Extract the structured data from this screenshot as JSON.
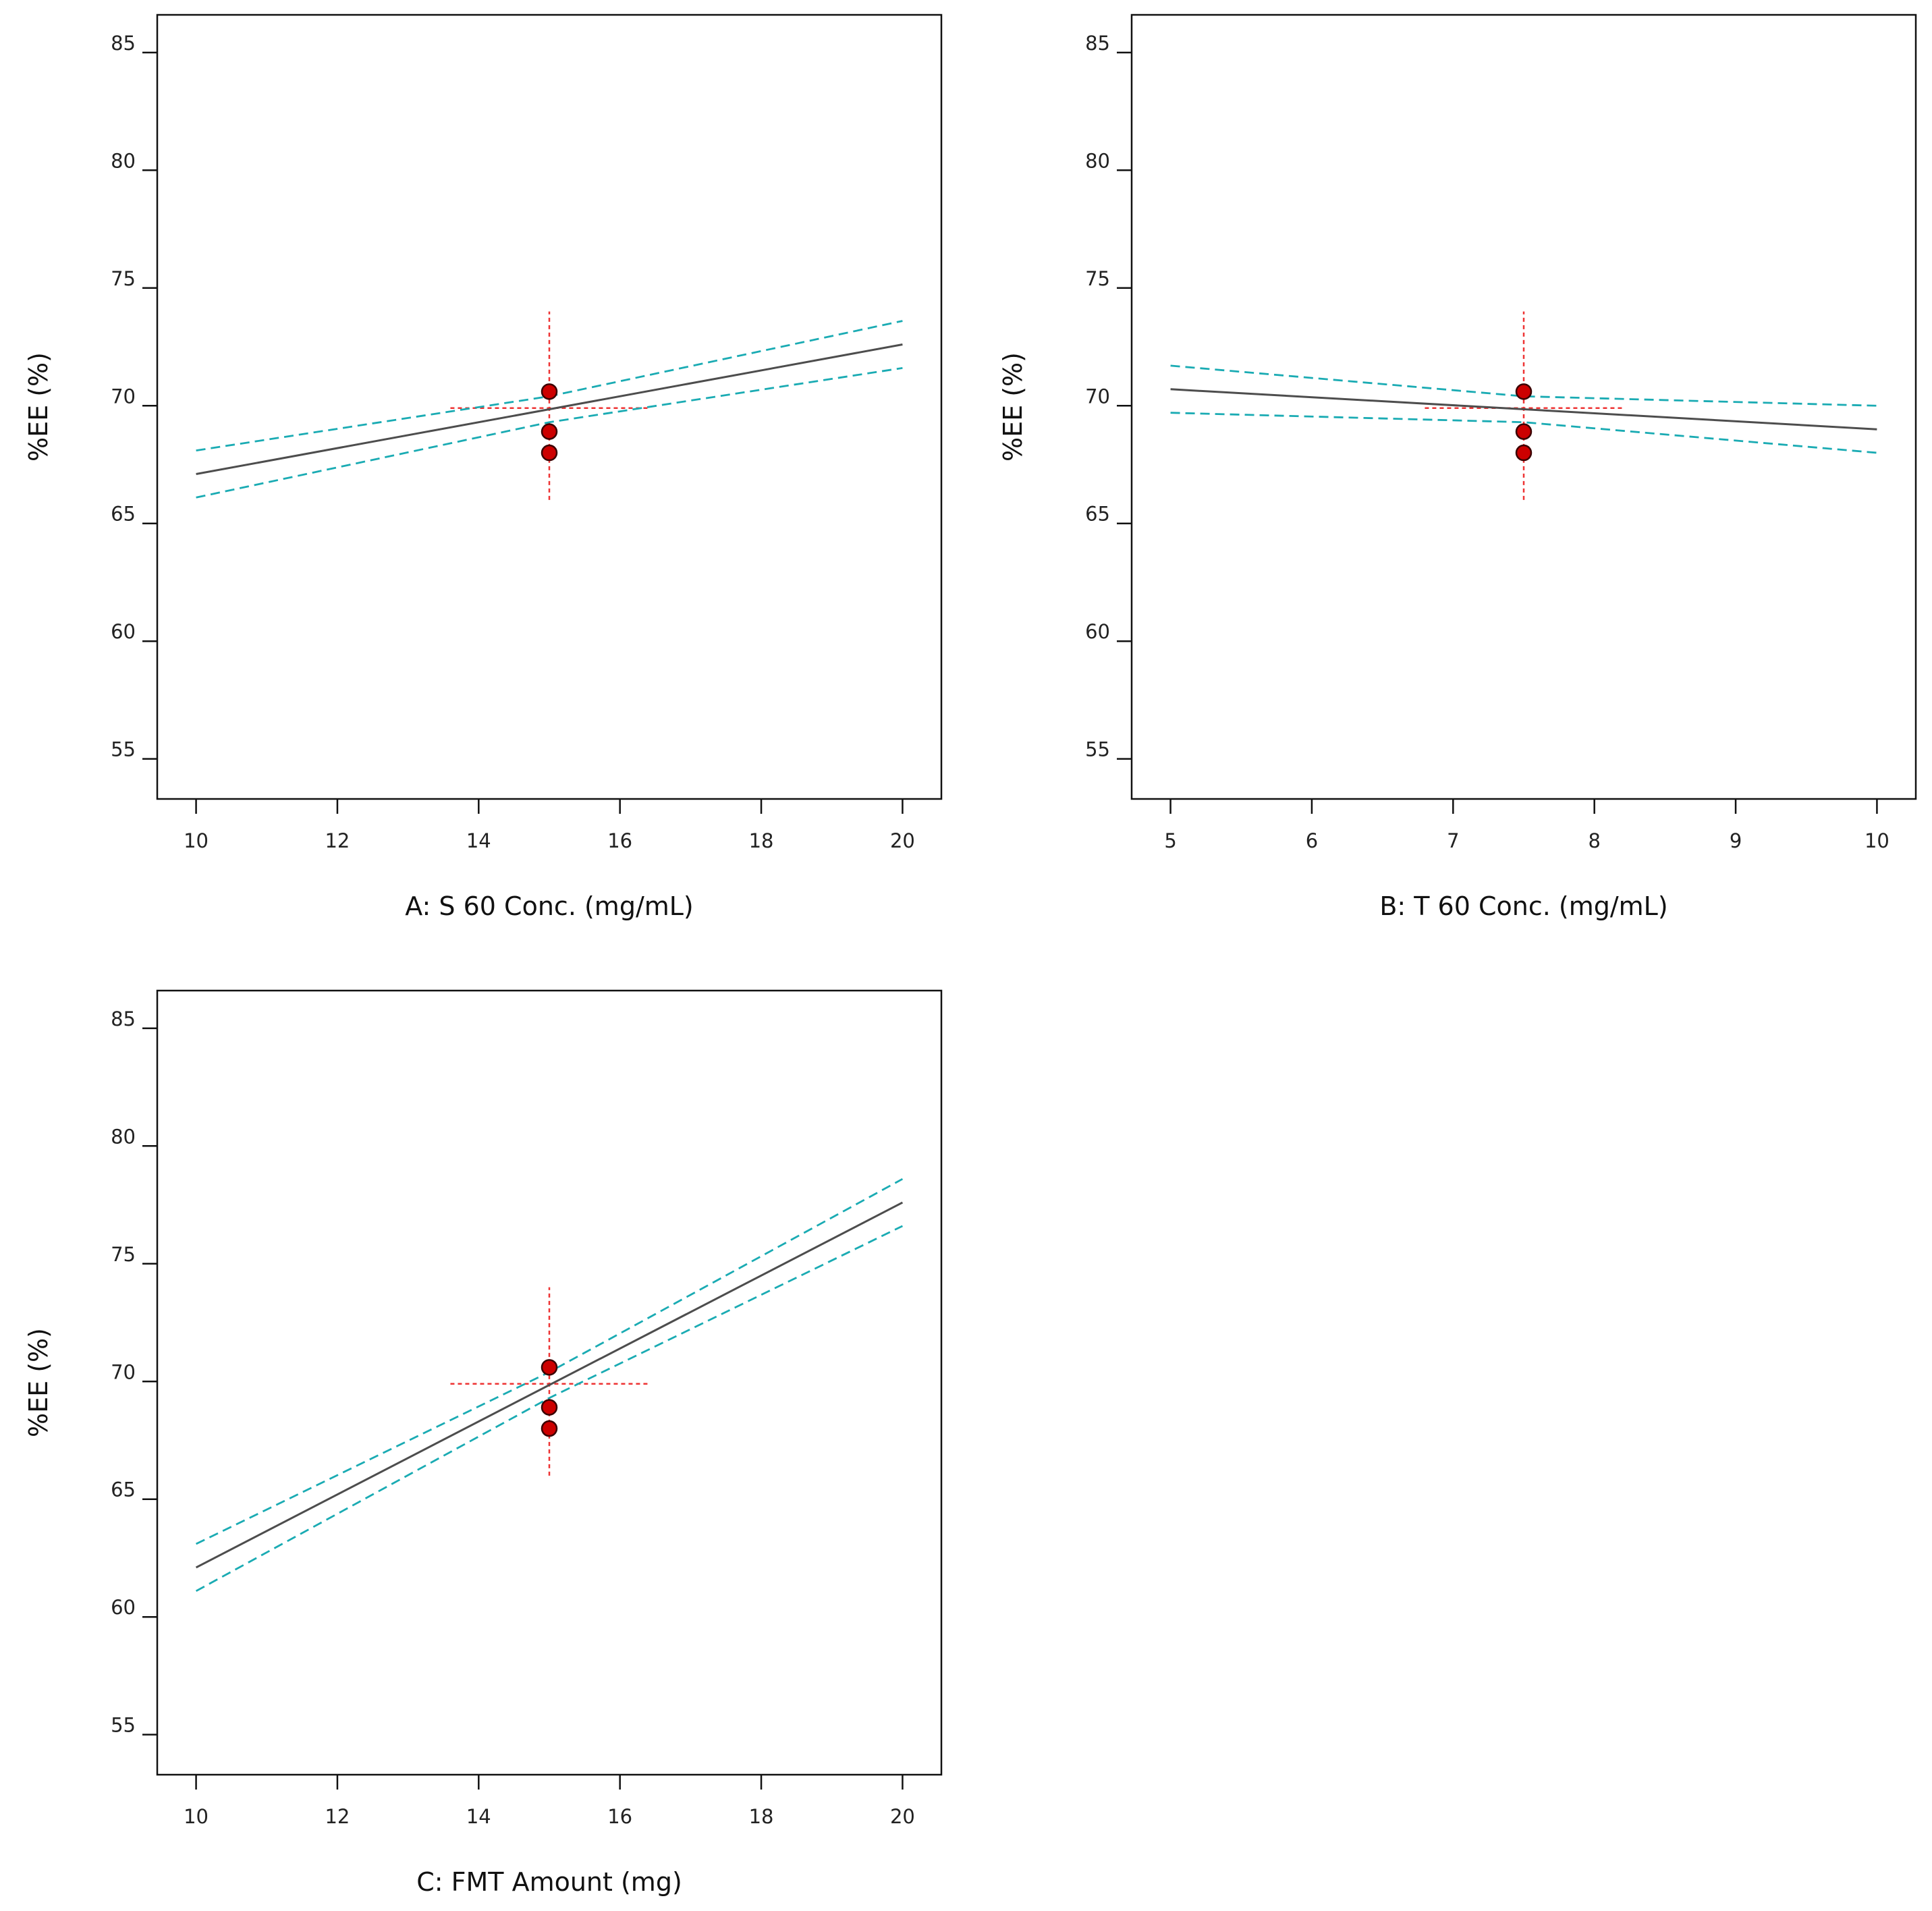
{
  "colors": {
    "fit_line": "#4d4d4d",
    "confidence_band": "#1aabb3",
    "design_point_fill": "#cc0000",
    "design_point_stroke": "#3a0000",
    "crosshair": "#ee3333",
    "frame": "#111111"
  },
  "chart_data": [
    {
      "id": "panel-a",
      "type": "line",
      "xlabel": "A: S 60 Conc. (mg/mL)",
      "ylabel": "%EE (%)",
      "xlim": [
        9.45,
        20.55
      ],
      "ylim": [
        53.3,
        86.6
      ],
      "xticks": [
        10,
        12,
        14,
        16,
        18,
        20
      ],
      "yticks": [
        55,
        60,
        65,
        70,
        75,
        80,
        85
      ],
      "series": [
        {
          "name": "Predicted %EE",
          "role": "fit",
          "x": [
            10,
            20
          ],
          "y": [
            67.1,
            72.6
          ]
        },
        {
          "name": "Upper 95% CI",
          "role": "ci",
          "x": [
            10,
            15,
            20
          ],
          "y": [
            68.1,
            70.4,
            73.6
          ]
        },
        {
          "name": "Lower 95% CI",
          "role": "ci",
          "x": [
            10,
            15,
            20
          ],
          "y": [
            66.1,
            69.3,
            71.6
          ]
        }
      ],
      "design_points": {
        "x": [
          15,
          15,
          15
        ],
        "y": [
          70.6,
          68.9,
          68.0
        ]
      },
      "crosshair": {
        "x": 15,
        "y": 69.9,
        "x_span": [
          13.6,
          16.4
        ],
        "y_span": [
          66.0,
          74.0
        ]
      }
    },
    {
      "id": "panel-b",
      "type": "line",
      "xlabel": "B: T 60 Conc. (mg/mL)",
      "ylabel": "%EE (%)",
      "xlim": [
        4.725,
        10.275
      ],
      "ylim": [
        53.3,
        86.6
      ],
      "xticks": [
        5,
        6,
        7,
        8,
        9,
        10
      ],
      "yticks": [
        55,
        60,
        65,
        70,
        75,
        80,
        85
      ],
      "series": [
        {
          "name": "Predicted %EE",
          "role": "fit",
          "x": [
            5,
            10
          ],
          "y": [
            70.7,
            69.0
          ]
        },
        {
          "name": "Upper 95% CI",
          "role": "ci",
          "x": [
            5,
            7.5,
            10
          ],
          "y": [
            71.7,
            70.4,
            70.0
          ]
        },
        {
          "name": "Lower 95% CI",
          "role": "ci",
          "x": [
            5,
            7.5,
            10
          ],
          "y": [
            69.7,
            69.3,
            68.0
          ]
        }
      ],
      "design_points": {
        "x": [
          7.5,
          7.5,
          7.5
        ],
        "y": [
          70.6,
          68.9,
          68.0
        ]
      },
      "crosshair": {
        "x": 7.5,
        "y": 69.9,
        "x_span": [
          6.8,
          8.2
        ],
        "y_span": [
          66.0,
          74.0
        ]
      }
    },
    {
      "id": "panel-c",
      "type": "line",
      "xlabel": "C: FMT Amount (mg)",
      "ylabel": "%EE (%)",
      "xlim": [
        9.45,
        20.55
      ],
      "ylim": [
        53.3,
        86.6
      ],
      "xticks": [
        10,
        12,
        14,
        16,
        18,
        20
      ],
      "yticks": [
        55,
        60,
        65,
        70,
        75,
        80,
        85
      ],
      "series": [
        {
          "name": "Predicted %EE",
          "role": "fit",
          "x": [
            10,
            20
          ],
          "y": [
            62.1,
            77.6
          ]
        },
        {
          "name": "Upper 95% CI",
          "role": "ci",
          "x": [
            10,
            15,
            20
          ],
          "y": [
            63.1,
            70.4,
            78.6
          ]
        },
        {
          "name": "Lower 95% CI",
          "role": "ci",
          "x": [
            10,
            15,
            20
          ],
          "y": [
            61.1,
            69.3,
            76.6
          ]
        }
      ],
      "design_points": {
        "x": [
          15,
          15,
          15
        ],
        "y": [
          70.6,
          68.9,
          68.0
        ]
      },
      "crosshair": {
        "x": 15,
        "y": 69.9,
        "x_span": [
          13.6,
          16.4
        ],
        "y_span": [
          66.0,
          74.0
        ]
      }
    }
  ]
}
